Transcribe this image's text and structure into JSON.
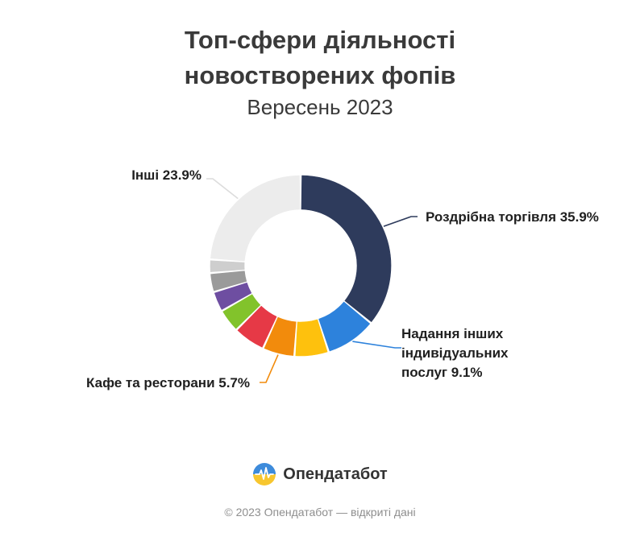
{
  "header": {
    "title_line1": "Топ-сфери діяльності",
    "title_line2": "новостворених фопів",
    "subtitle": "Вересень 2023"
  },
  "chart_data": {
    "type": "pie",
    "donut": true,
    "labels": [
      "Роздрібна торгівля",
      "Надання інших індивідуальних послуг",
      "",
      "Кафе та ресторани",
      "",
      "",
      "",
      "",
      "",
      "Інші"
    ],
    "values": [
      35.9,
      9.1,
      6.1,
      5.7,
      5.7,
      4.2,
      3.6,
      3.4,
      2.4,
      23.9
    ],
    "colors": [
      "#2e3b5c",
      "#2d82dc",
      "#fec10d",
      "#f28b0c",
      "#e63946",
      "#82c32b",
      "#6e4ea1",
      "#9a9a9a",
      "#cecece",
      "#ececec"
    ],
    "data_labels": [
      {
        "index": 0,
        "lines": [
          "Роздрібна торгівля 35.9%"
        ]
      },
      {
        "index": 1,
        "lines": [
          "Надання інших",
          "індивідуальних",
          "послуг 9.1%"
        ]
      },
      {
        "index": 3,
        "lines": [
          "Кафе та ресторани 5.7%"
        ]
      },
      {
        "index": 9,
        "lines": [
          "Інші 23.9%"
        ]
      }
    ]
  },
  "brand": {
    "name": "Опендатабот"
  },
  "footer": {
    "text": "© 2023 Опендатабот — відкриті дані"
  }
}
